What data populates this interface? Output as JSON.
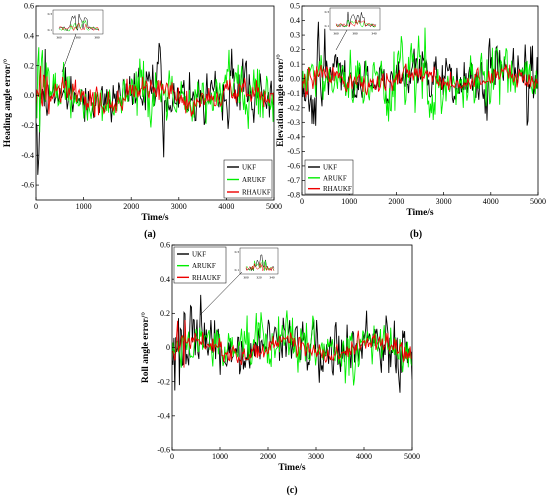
{
  "chart_data": [
    {
      "id": "a",
      "type": "line",
      "panel_label": "(a)",
      "xlabel": "Time/s",
      "ylabel": "Heading angle error/°",
      "xlim": [
        0,
        5000
      ],
      "ylim": [
        -0.7,
        0.6
      ],
      "xticks": [
        0,
        1000,
        2000,
        3000,
        4000,
        5000
      ],
      "yticks": [
        -0.6,
        -0.4,
        -0.2,
        0.0,
        0.2,
        0.4,
        0.6
      ],
      "ytick_labels": [
        "-0.6",
        "-0.4",
        "-0.2",
        "0.0",
        "0.2",
        "0.4",
        "0.6"
      ],
      "legend_position": "bottom-right",
      "inset": {
        "xticks": [
          "360",
          "380",
          "380"
        ],
        "yticks": [
          "0.3",
          "0.1"
        ]
      },
      "series": [
        {
          "name": "UKF",
          "color": "#000000"
        },
        {
          "name": "ARUKF",
          "color": "#00ee00"
        },
        {
          "name": "RHAUKF",
          "color": "#ee0000"
        }
      ]
    },
    {
      "id": "b",
      "type": "line",
      "panel_label": "(b)",
      "xlabel": "Time/s",
      "ylabel": "Elevation angle error/°",
      "xlim": [
        0,
        5000
      ],
      "ylim": [
        -0.8,
        0.5
      ],
      "xticks": [
        0,
        1000,
        2000,
        3000,
        4000,
        5000
      ],
      "yticks": [
        -0.8,
        -0.7,
        -0.6,
        -0.5,
        -0.4,
        -0.3,
        -0.2,
        -0.1,
        0.0,
        0.1,
        0.2,
        0.3,
        0.4,
        0.5
      ],
      "ytick_labels": [
        "-0.8",
        "-0.7",
        "-0.6",
        "-0.5",
        "-0.4",
        "-0.3",
        "-0.2",
        "-0.1",
        "0.0",
        "0.1",
        "0.2",
        "0.3",
        "0.4",
        "0.5"
      ],
      "legend_position": "bottom-left",
      "inset": {
        "xticks": [
          "360",
          "380",
          "340"
        ],
        "yticks": [
          "0.3",
          "0.1"
        ]
      },
      "series": [
        {
          "name": "UKF",
          "color": "#000000"
        },
        {
          "name": "ARUKF",
          "color": "#00ee00"
        },
        {
          "name": "RHAUKF",
          "color": "#ee0000"
        }
      ]
    },
    {
      "id": "c",
      "type": "line",
      "panel_label": "(c)",
      "xlabel": "Time/s",
      "ylabel": "Roll angle error/°",
      "xlim": [
        0,
        5000
      ],
      "ylim": [
        -0.6,
        0.6
      ],
      "xticks": [
        0,
        1000,
        2000,
        3000,
        4000,
        5000
      ],
      "yticks": [
        -0.6,
        -0.4,
        -0.2,
        0.0,
        0.2,
        0.4,
        0.6
      ],
      "ytick_labels": [
        "-0.6",
        "-0.4",
        "-0.2",
        "0",
        "0.2",
        "0.4",
        "0.6"
      ],
      "legend_position": "top-left",
      "inset": {
        "xticks": [
          "300",
          "320",
          "340"
        ],
        "yticks": [
          "0.3",
          "0.1"
        ]
      },
      "series": [
        {
          "name": "UKF",
          "color": "#000000"
        },
        {
          "name": "ARUKF",
          "color": "#00ee00"
        },
        {
          "name": "RHAUKF",
          "color": "#ee0000"
        }
      ]
    }
  ]
}
